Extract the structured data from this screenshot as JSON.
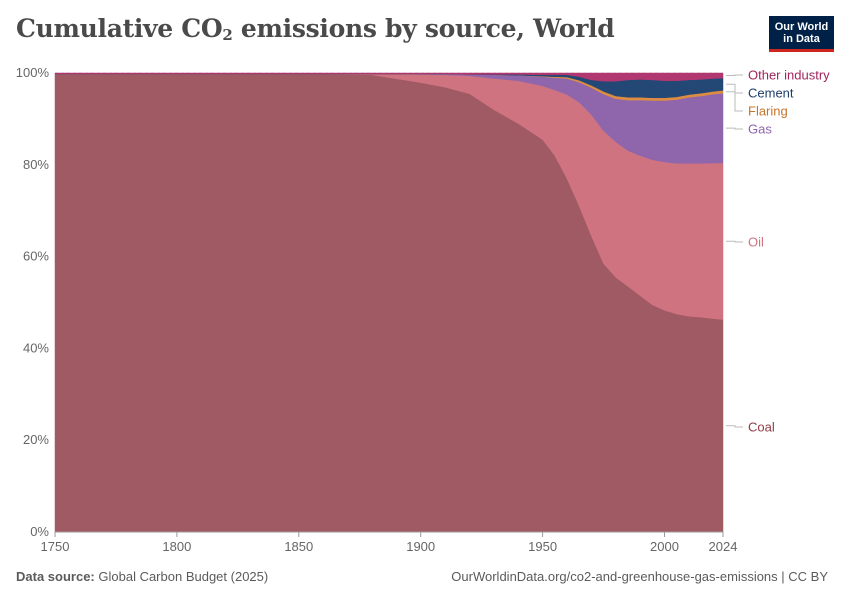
{
  "header": {
    "title_prefix": "Cumulative CO",
    "title_sub": "2",
    "title_suffix": " emissions by source, World",
    "logo_line1": "Our World",
    "logo_line2": "in Data"
  },
  "footer": {
    "source_label": "Data source:",
    "source_value": "Global Carbon Budget (2025)",
    "link": "OurWorldinData.org/co2-and-greenhouse-gas-emissions | CC BY"
  },
  "chart_data": {
    "type": "area",
    "stacked": true,
    "normalized": true,
    "x": [
      1750,
      1800,
      1850,
      1880,
      1900,
      1910,
      1920,
      1930,
      1940,
      1950,
      1955,
      1960,
      1965,
      1970,
      1975,
      1980,
      1985,
      1990,
      1995,
      2000,
      2005,
      2010,
      2015,
      2020,
      2024
    ],
    "series": [
      {
        "name": "Coal",
        "color": "#a05a63",
        "values": [
          99.8,
          99.8,
          99.8,
          99.6,
          97.9,
          96.9,
          95.5,
          92.0,
          89.0,
          85.5,
          82.0,
          77.0,
          71.0,
          64.5,
          58.5,
          55.5,
          53.5,
          51.5,
          49.5,
          48.3,
          47.5,
          47.0,
          46.8,
          46.5,
          46.3
        ]
      },
      {
        "name": "Oil",
        "color": "#d07380",
        "values": [
          0,
          0,
          0,
          0.2,
          1.8,
          2.7,
          3.9,
          6.8,
          9.3,
          11.7,
          14.3,
          18.3,
          22.6,
          26.4,
          28.9,
          29.5,
          29.6,
          30.5,
          31.6,
          32.3,
          32.8,
          33.3,
          33.5,
          33.9,
          34.1
        ]
      },
      {
        "name": "Gas",
        "color": "#8f66ac",
        "values": [
          0,
          0,
          0,
          0,
          0.1,
          0.2,
          0.3,
          0.8,
          1.2,
          2.0,
          2.7,
          3.5,
          4.4,
          5.9,
          8.0,
          9.4,
          11.0,
          12.1,
          12.9,
          13.4,
          13.9,
          14.4,
          14.7,
          15.0,
          15.2
        ]
      },
      {
        "name": "Flaring",
        "color": "#dd8c42",
        "values": [
          0,
          0,
          0,
          0,
          0,
          0,
          0,
          0,
          0,
          0.1,
          0.2,
          0.3,
          0.4,
          0.5,
          0.6,
          0.6,
          0.6,
          0.6,
          0.6,
          0.6,
          0.6,
          0.6,
          0.6,
          0.6,
          0.6
        ]
      },
      {
        "name": "Cement",
        "color": "#234875",
        "values": [
          0,
          0,
          0,
          0,
          0,
          0,
          0,
          0.1,
          0.2,
          0.3,
          0.4,
          0.5,
          0.8,
          1.2,
          2.2,
          3.2,
          3.8,
          3.9,
          3.9,
          3.7,
          3.5,
          3.2,
          3.0,
          2.8,
          2.7
        ]
      },
      {
        "name": "Other industry",
        "color": "#b13770",
        "values": [
          0.2,
          0.2,
          0.2,
          0.2,
          0.2,
          0.2,
          0.3,
          0.3,
          0.3,
          0.4,
          0.4,
          0.4,
          0.8,
          1.5,
          1.8,
          1.8,
          1.5,
          1.4,
          1.5,
          1.7,
          1.7,
          1.5,
          1.4,
          1.2,
          1.1
        ]
      }
    ],
    "xlim": [
      1750,
      2024
    ],
    "ylim": [
      0,
      100
    ],
    "x_ticks": [
      1750,
      1800,
      1850,
      1900,
      1950,
      2000,
      2024
    ],
    "y_ticks": [
      0,
      20,
      40,
      60,
      80,
      100
    ],
    "y_tick_suffix": "%",
    "grid": "horizontal dashed",
    "legend": "right, inline labels"
  }
}
